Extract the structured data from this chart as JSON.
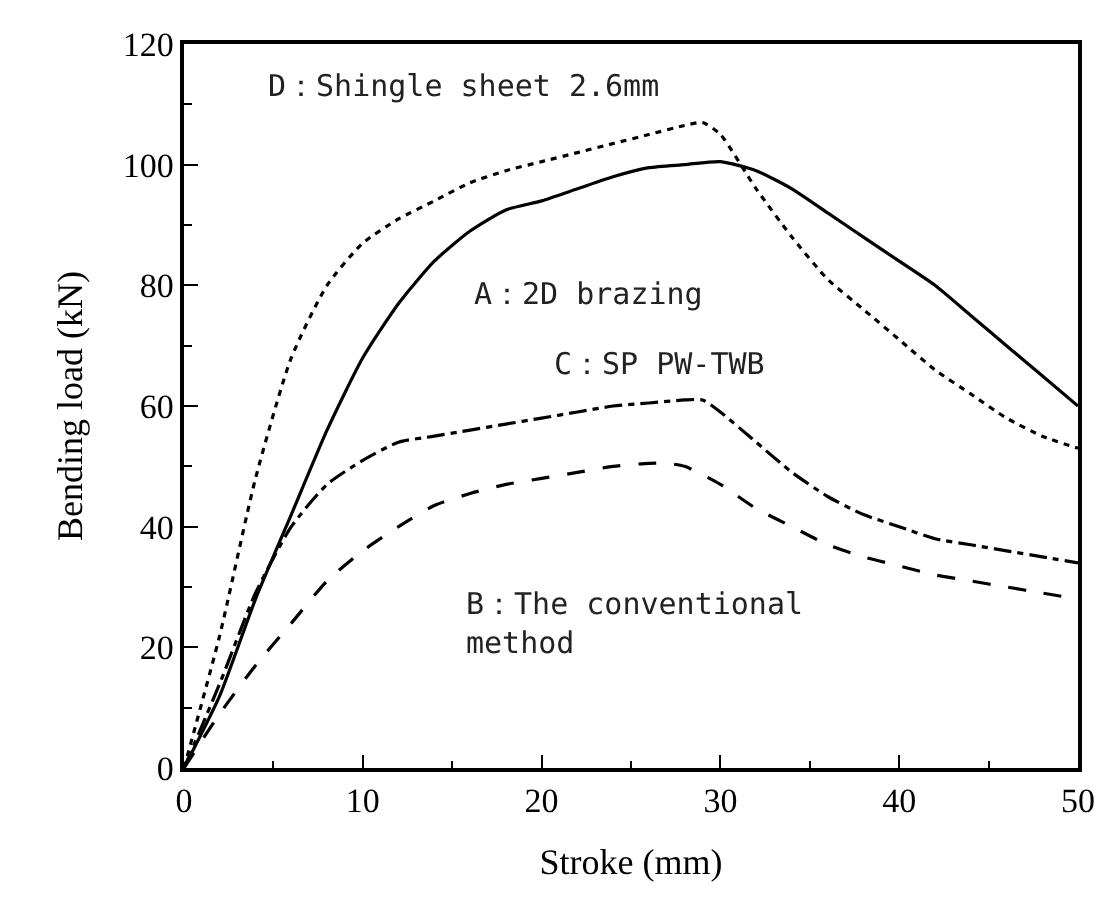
{
  "chart_data": {
    "type": "line",
    "xlabel": "Stroke (mm)",
    "ylabel": "Bending load (kN)",
    "xlim": [
      0,
      50
    ],
    "xticks": [
      0,
      10,
      20,
      30,
      40,
      50
    ],
    "ylim": [
      0,
      120
    ],
    "yticks": [
      0,
      20,
      40,
      60,
      80,
      100,
      120
    ],
    "legend": false,
    "marker": "none",
    "series": [
      {
        "name": "A：2D brazing",
        "color": "#000000",
        "line_style": "solid",
        "x": [
          0,
          2,
          4,
          6,
          8,
          10,
          12,
          14,
          16,
          18,
          20,
          22,
          24,
          26,
          28,
          30,
          32,
          34,
          36,
          38,
          40,
          42,
          44,
          46,
          48,
          50
        ],
        "values": [
          0,
          12,
          28,
          42,
          56,
          68,
          77,
          84,
          89,
          92.5,
          94,
          96,
          98,
          99.5,
          100,
          100.5,
          99,
          96,
          92,
          88,
          84,
          80,
          75,
          70,
          65,
          60
        ]
      },
      {
        "name": "B：The conventional\nmethod",
        "color": "#000000",
        "line_style": "dashed",
        "x": [
          0,
          2,
          4,
          6,
          8,
          10,
          12,
          14,
          16,
          18,
          20,
          22,
          24,
          26,
          27,
          28,
          30,
          32,
          34,
          36,
          38,
          40,
          42,
          44,
          46,
          48,
          50
        ],
        "values": [
          0,
          9,
          17,
          24,
          31,
          36,
          40,
          43.5,
          45.5,
          47,
          48,
          49,
          50,
          50.5,
          50.5,
          50,
          47,
          43,
          40,
          37,
          35,
          33.5,
          32,
          31,
          30,
          29,
          28
        ]
      },
      {
        "name": "C：SP PW-TWB",
        "color": "#000000",
        "line_style": "dashdot",
        "x": [
          0,
          2,
          4,
          6,
          8,
          10,
          12,
          14,
          16,
          18,
          20,
          22,
          24,
          26,
          28,
          29,
          30,
          32,
          34,
          36,
          38,
          40,
          42,
          44,
          46,
          48,
          50
        ],
        "values": [
          0,
          14,
          29,
          40,
          47,
          51,
          54,
          55,
          56,
          57,
          58,
          59,
          60,
          60.5,
          61,
          61,
          59,
          54,
          49,
          45,
          42,
          40,
          38,
          37,
          36,
          35,
          34
        ]
      },
      {
        "name": "D：Shingle sheet 2.6mm",
        "color": "#000000",
        "line_style": "dotted",
        "x": [
          0,
          2,
          4,
          6,
          8,
          10,
          12,
          14,
          16,
          18,
          20,
          22,
          24,
          26,
          28,
          29,
          30,
          32,
          34,
          36,
          38,
          40,
          42,
          44,
          46,
          48,
          50
        ],
        "values": [
          0,
          22,
          48,
          68,
          80,
          87,
          91,
          94,
          97,
          99,
          100.5,
          102,
          103.5,
          105,
          106.5,
          107,
          105,
          96,
          88,
          81,
          76,
          71,
          66,
          62,
          58,
          55,
          53
        ]
      }
    ]
  }
}
